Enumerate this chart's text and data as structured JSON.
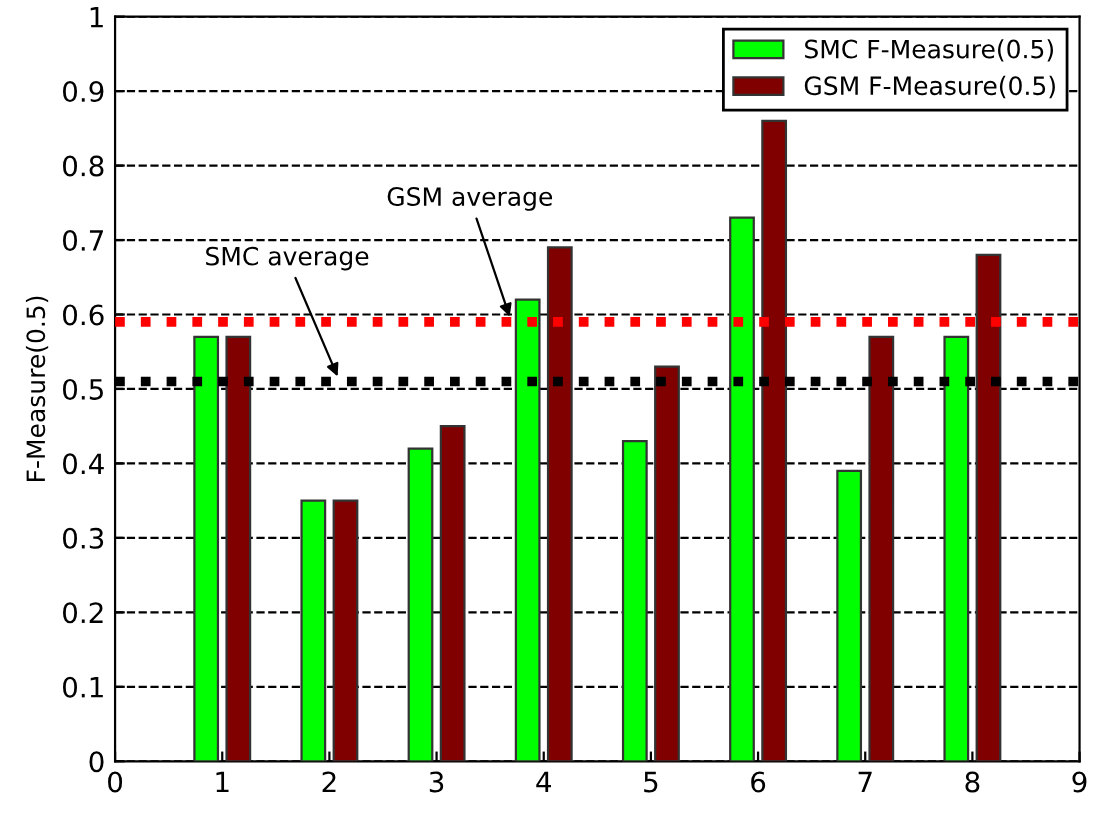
{
  "chart_data": {
    "type": "bar",
    "ylabel": "F-Measure(0.5)",
    "x": [
      1,
      2,
      3,
      4,
      5,
      6,
      7,
      8
    ],
    "series": [
      {
        "name": "SMC F-Measure(0.5)",
        "color": "#00ff00",
        "values": [
          0.57,
          0.35,
          0.42,
          0.62,
          0.43,
          0.73,
          0.39,
          0.57
        ]
      },
      {
        "name": "GSM F-Measure(0.5)",
        "color": "#800000",
        "values": [
          0.57,
          0.35,
          0.45,
          0.69,
          0.53,
          0.86,
          0.57,
          0.68
        ]
      }
    ],
    "xlim": [
      0,
      9
    ],
    "xticks": [
      0,
      1,
      2,
      3,
      4,
      5,
      6,
      7,
      8,
      9
    ],
    "ylim": [
      0,
      1
    ],
    "yticks": [
      0,
      0.1,
      0.2,
      0.3,
      0.4,
      0.5,
      0.6,
      0.7,
      0.8,
      0.9,
      1
    ],
    "ref_lines": [
      {
        "axis": "y",
        "value": 0.59,
        "label": "GSM average",
        "color": "#ff0000",
        "line_style": "dotted"
      },
      {
        "axis": "y",
        "value": 0.51,
        "label": "SMC average",
        "color": "#000000",
        "line_style": "dotted"
      }
    ],
    "grid": "y",
    "legend": "top right"
  }
}
